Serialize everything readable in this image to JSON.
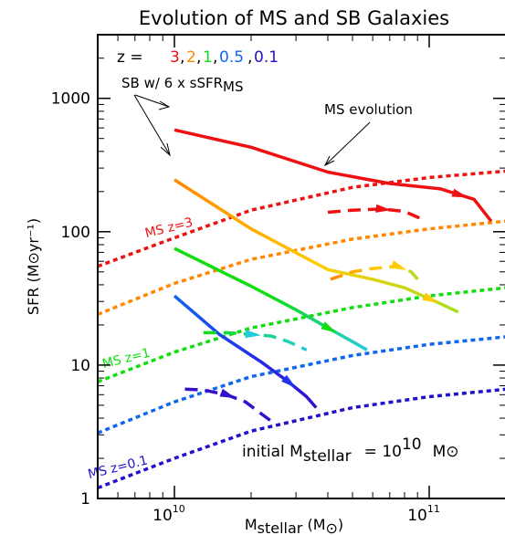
{
  "chart_data": {
    "type": "line",
    "title": "Evolution of MS and SB Galaxies",
    "xlabel": "M",
    "xlabel_sub": "stellar",
    "xlabel_unit_open": " (M",
    "xlabel_unit_sub": "⊙",
    "xlabel_unit_close": ")",
    "ylabel": "SFR (M⊙yr⁻¹)",
    "xscale": "log",
    "yscale": "log",
    "xlim": [
      5000000000,
      200000000000
    ],
    "ylim": [
      1,
      3000
    ],
    "x_ticks": [
      {
        "value": 10000000000,
        "base": "10",
        "exp": "10"
      },
      {
        "value": 100000000000,
        "base": "10",
        "exp": "11"
      }
    ],
    "y_ticks": [
      {
        "value": 1,
        "label": "1"
      },
      {
        "value": 10,
        "label": "10"
      },
      {
        "value": 100,
        "label": "100"
      },
      {
        "value": 1000,
        "label": "1000"
      }
    ],
    "grid": false,
    "legend": {
      "prefix": "z =",
      "items": [
        {
          "label": "3",
          "color": "#ee1111"
        },
        {
          "label": "2",
          "color": "#ff8800"
        },
        {
          "label": "1",
          "color": "#11dd11"
        },
        {
          "label": "0.5",
          "color": "#1166ee"
        },
        {
          "label": "0.1",
          "color": "#2211cc"
        }
      ],
      "separator": ","
    },
    "annotations": {
      "sb_label": "SB w/ 6 x sSFR",
      "sb_label_sub": "MS",
      "ms_evolution": "MS evolution",
      "initial_text": "initial M",
      "initial_sub": "stellar",
      "initial_eq": "= 10",
      "initial_exp": "10",
      "initial_unit": "M⊙"
    },
    "ms_relations": [
      {
        "name": "MS z=3",
        "label": "MS z=3",
        "color": "#ee1111",
        "x": [
          5000000000.0,
          10000000000.0,
          20000000000.0,
          50000000000.0,
          100000000000.0,
          200000000000.0
        ],
        "y": [
          55,
          90,
          145,
          215,
          255,
          285
        ]
      },
      {
        "name": "z=2",
        "color": "#ff8800",
        "x": [
          5000000000.0,
          10000000000.0,
          20000000000.0,
          50000000000.0,
          100000000000.0,
          200000000000.0
        ],
        "y": [
          24,
          41,
          62,
          88,
          105,
          120
        ]
      },
      {
        "name": "MS z=1",
        "label": "MS z=1",
        "color": "#11dd11",
        "x": [
          5000000000.0,
          10000000000.0,
          20000000000.0,
          50000000000.0,
          100000000000.0,
          200000000000.0
        ],
        "y": [
          7.5,
          12.5,
          19,
          27,
          33,
          38
        ]
      },
      {
        "name": "z=0.5",
        "color": "#1166ee",
        "x": [
          5000000000.0,
          10000000000.0,
          20000000000.0,
          50000000000.0,
          100000000000.0,
          200000000000.0
        ],
        "y": [
          3.1,
          5.3,
          8.2,
          11.8,
          14.3,
          16.3
        ]
      },
      {
        "name": "MS z=0.1",
        "label": "MS z=0.1",
        "color": "#2211cc",
        "x": [
          5000000000.0,
          10000000000.0,
          20000000000.0,
          50000000000.0,
          100000000000.0,
          200000000000.0
        ],
        "y": [
          1.2,
          2.0,
          3.2,
          4.8,
          5.8,
          6.6
        ]
      }
    ],
    "sb_tracks": [
      {
        "name": "SB z=3",
        "colors": [
          "#ee1111",
          "#ee1111"
        ],
        "x": [
          10000000000.0,
          20000000000.0,
          40000000000.0,
          70000000000.0,
          110000000000.0,
          150000000000.0,
          175000000000.0
        ],
        "y": [
          580,
          430,
          280,
          230,
          210,
          175,
          120
        ],
        "arrow_x": 130000000000.0
      },
      {
        "name": "SB z=2",
        "colors": [
          "#ff8800",
          "#ffcc00",
          "#aadd22"
        ],
        "x": [
          10000000000.0,
          20000000000.0,
          40000000000.0,
          60000000000.0,
          80000000000.0,
          110000000000.0,
          130000000000.0
        ],
        "y": [
          245,
          105,
          52,
          44,
          38,
          29,
          25
        ],
        "arrow_x": 100000000000.0
      },
      {
        "name": "SB z=1",
        "colors": [
          "#11dd11",
          "#11dd11",
          "#22ccdd"
        ],
        "x": [
          10000000000.0,
          20000000000.0,
          30000000000.0,
          40000000000.0,
          50000000000.0,
          57000000000.0
        ],
        "y": [
          75,
          39,
          26,
          19,
          15,
          13
        ],
        "arrow_x": 40000000000.0
      },
      {
        "name": "SB z=0.5",
        "colors": [
          "#1166ee",
          "#2233ee",
          "#3311cc"
        ],
        "x": [
          10000000000.0,
          15000000000.0,
          22000000000.0,
          28000000000.0,
          33000000000.0,
          36000000000.0
        ],
        "y": [
          33,
          17,
          10.5,
          7.5,
          5.8,
          4.8
        ],
        "arrow_x": 28000000000.0
      }
    ],
    "ms_evolution_tracks": [
      {
        "name": "MS evo z=3",
        "color": "#ee1111",
        "x": [
          40000000000.0,
          50000000000.0,
          65000000000.0,
          80000000000.0,
          93000000000.0
        ],
        "y": [
          140,
          145,
          148,
          142,
          125
        ],
        "arrow_x": 65000000000.0
      },
      {
        "name": "MS evo z=2",
        "color": "#ff8800",
        "colors": [
          "#ff8800",
          "#ffcc00",
          "#aadd22"
        ],
        "x": [
          41000000000.0,
          50000000000.0,
          60000000000.0,
          75000000000.0,
          85000000000.0,
          94000000000.0
        ],
        "y": [
          44,
          50,
          53,
          55,
          50,
          40
        ],
        "arrow_x": 75000000000.0
      },
      {
        "name": "MS evo z=1",
        "color": "#11dd11",
        "colors": [
          "#11dd11",
          "#22ccdd"
        ],
        "x": [
          13000000000.0,
          16000000000.0,
          20000000000.0,
          24000000000.0,
          28000000000.0,
          33000000000.0
        ],
        "y": [
          17.5,
          17.5,
          17,
          16.5,
          15,
          13
        ],
        "arrow_x": 20000000000.0
      },
      {
        "name": "MS evo z=0.5",
        "color": "#3311cc",
        "x": [
          11000000000.0,
          13000000000.0,
          16000000000.0,
          19000000000.0,
          22000000000.0,
          24000000000.0
        ],
        "y": [
          6.6,
          6.5,
          6.0,
          5.3,
          4.3,
          3.8
        ],
        "arrow_x": 16000000000.0
      }
    ]
  }
}
